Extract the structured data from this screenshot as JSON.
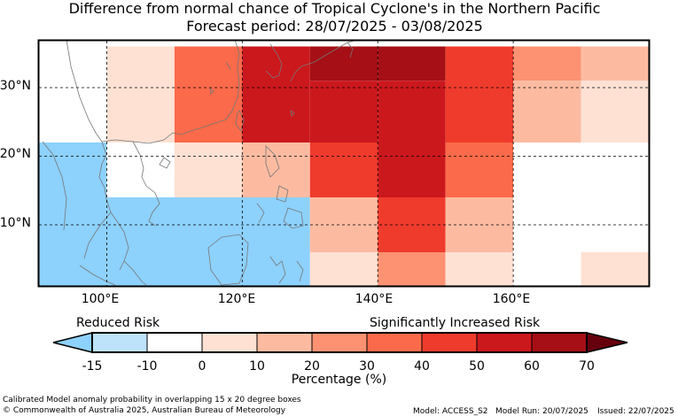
{
  "title": {
    "line1": "Difference from normal chance of Tropical Cyclone's in the Northern Pacific",
    "line2": "Forecast period: 28/07/2025 - 03/08/2025"
  },
  "map": {
    "lon_range": [
      90,
      180
    ],
    "lat_range": [
      0,
      36
    ],
    "lat_ticks": [
      {
        "value": 30,
        "label": "30°N"
      },
      {
        "value": 20,
        "label": "20°N"
      },
      {
        "value": 10,
        "label": "10°N"
      }
    ],
    "lon_ticks": [
      {
        "value": 100,
        "label": "100°E"
      },
      {
        "value": 120,
        "label": "120°E"
      },
      {
        "value": 140,
        "label": "140°E"
      },
      {
        "value": 160,
        "label": "160°E"
      }
    ],
    "gridlines": "dashed",
    "cells": [
      {
        "lon": [
          90,
          100
        ],
        "lat": [
          28,
          36
        ],
        "level": -10
      },
      {
        "lon": [
          100,
          110
        ],
        "lat": [
          28,
          36
        ],
        "level": 0
      },
      {
        "lon": [
          110,
          120
        ],
        "lat": [
          28,
          36
        ],
        "level": 30
      },
      {
        "lon": [
          120,
          130
        ],
        "lat": [
          28,
          36
        ],
        "level": 50
      },
      {
        "lon": [
          130,
          140
        ],
        "lat": [
          31,
          36
        ],
        "level": 60
      },
      {
        "lon": [
          140,
          150
        ],
        "lat": [
          31,
          36
        ],
        "level": 60
      },
      {
        "lon": [
          130,
          140
        ],
        "lat": [
          28,
          31
        ],
        "level": 50
      },
      {
        "lon": [
          140,
          150
        ],
        "lat": [
          28,
          31
        ],
        "level": 50
      },
      {
        "lon": [
          150,
          160
        ],
        "lat": [
          28,
          36
        ],
        "level": 40
      },
      {
        "lon": [
          160,
          170
        ],
        "lat": [
          31,
          36
        ],
        "level": 20
      },
      {
        "lon": [
          170,
          180
        ],
        "lat": [
          31,
          36
        ],
        "level": 10
      },
      {
        "lon": [
          160,
          170
        ],
        "lat": [
          22,
          31
        ],
        "level": 10
      },
      {
        "lon": [
          170,
          180
        ],
        "lat": [
          22,
          31
        ],
        "level": 0
      },
      {
        "lon": [
          90,
          100
        ],
        "lat": [
          22,
          28
        ],
        "level": -10
      },
      {
        "lon": [
          100,
          110
        ],
        "lat": [
          22,
          28
        ],
        "level": 0
      },
      {
        "lon": [
          110,
          120
        ],
        "lat": [
          22,
          28
        ],
        "level": 30
      },
      {
        "lon": [
          120,
          130
        ],
        "lat": [
          22,
          28
        ],
        "level": 50
      },
      {
        "lon": [
          130,
          140
        ],
        "lat": [
          22,
          28
        ],
        "level": 50
      },
      {
        "lon": [
          140,
          150
        ],
        "lat": [
          22,
          28
        ],
        "level": 50
      },
      {
        "lon": [
          150,
          160
        ],
        "lat": [
          22,
          28
        ],
        "level": 40
      },
      {
        "lon": [
          90,
          100
        ],
        "lat": [
          14,
          22
        ],
        "level": -15
      },
      {
        "lon": [
          100,
          110
        ],
        "lat": [
          14,
          22
        ],
        "level": -10
      },
      {
        "lon": [
          110,
          120
        ],
        "lat": [
          14,
          22
        ],
        "level": 0
      },
      {
        "lon": [
          120,
          130
        ],
        "lat": [
          14,
          22
        ],
        "level": 10
      },
      {
        "lon": [
          130,
          140
        ],
        "lat": [
          14,
          22
        ],
        "level": 40
      },
      {
        "lon": [
          140,
          150
        ],
        "lat": [
          14,
          22
        ],
        "level": 50
      },
      {
        "lon": [
          150,
          160
        ],
        "lat": [
          14,
          22
        ],
        "level": 30
      },
      {
        "lon": [
          160,
          170
        ],
        "lat": [
          14,
          22
        ],
        "level": -10
      },
      {
        "lon": [
          170,
          180
        ],
        "lat": [
          14,
          22
        ],
        "level": -10
      },
      {
        "lon": [
          90,
          130
        ],
        "lat": [
          0,
          14
        ],
        "level": -15
      },
      {
        "lon": [
          130,
          140
        ],
        "lat": [
          6,
          14
        ],
        "level": 10
      },
      {
        "lon": [
          140,
          150
        ],
        "lat": [
          6,
          14
        ],
        "level": 40
      },
      {
        "lon": [
          150,
          160
        ],
        "lat": [
          6,
          14
        ],
        "level": 10
      },
      {
        "lon": [
          160,
          170
        ],
        "lat": [
          6,
          14
        ],
        "level": -10
      },
      {
        "lon": [
          170,
          180
        ],
        "lat": [
          6,
          14
        ],
        "level": -10
      },
      {
        "lon": [
          130,
          140
        ],
        "lat": [
          0,
          6
        ],
        "level": 0
      },
      {
        "lon": [
          140,
          150
        ],
        "lat": [
          0,
          6
        ],
        "level": 20
      },
      {
        "lon": [
          150,
          160
        ],
        "lat": [
          0,
          6
        ],
        "level": 0
      },
      {
        "lon": [
          160,
          170
        ],
        "lat": [
          0,
          6
        ],
        "level": -10
      },
      {
        "lon": [
          170,
          180
        ],
        "lat": [
          0,
          6
        ],
        "level": 0
      }
    ]
  },
  "colorbar": {
    "reduced_label": "Reduced Risk",
    "increased_label": "Significantly Increased Risk",
    "axis_label": "Percentage (%)",
    "ticks": [
      "-15",
      "-10",
      "0",
      "10",
      "20",
      "30",
      "40",
      "50",
      "60",
      "70"
    ],
    "bins": [
      {
        "level": -15,
        "color": "#bde3fb"
      },
      {
        "level": -10,
        "color": "#ffffff"
      },
      {
        "level": 0,
        "color": "#fee1d3"
      },
      {
        "level": 10,
        "color": "#fcbba1"
      },
      {
        "level": 20,
        "color": "#fc9272"
      },
      {
        "level": 30,
        "color": "#fb6a4a"
      },
      {
        "level": 40,
        "color": "#ef3b2c"
      },
      {
        "level": 50,
        "color": "#cb181d"
      },
      {
        "level": 60,
        "color": "#a50f15"
      }
    ],
    "under_color": "#8dd1fd",
    "over_color": "#67000d",
    "map_colors": {
      "-15": "#8dd1fd",
      "-10": "#ffffff",
      "0": "#fee1d3",
      "10": "#fcbba1",
      "20": "#fc9272",
      "30": "#fb6a4a",
      "40": "#ef3b2c",
      "50": "#cb181d",
      "60": "#a50f15",
      "70": "#67000d"
    }
  },
  "footer": {
    "line1": "Calibrated Model anomaly probability in overlapping 15 x 20 degree boxes",
    "line2": "© Commonwealth of Australia 2025, Australian Bureau of Meteorology",
    "model": "Model: ACCESS_S2",
    "model_run": "Model Run: 20/07/2025",
    "issued": "Issued: 22/07/2025"
  }
}
